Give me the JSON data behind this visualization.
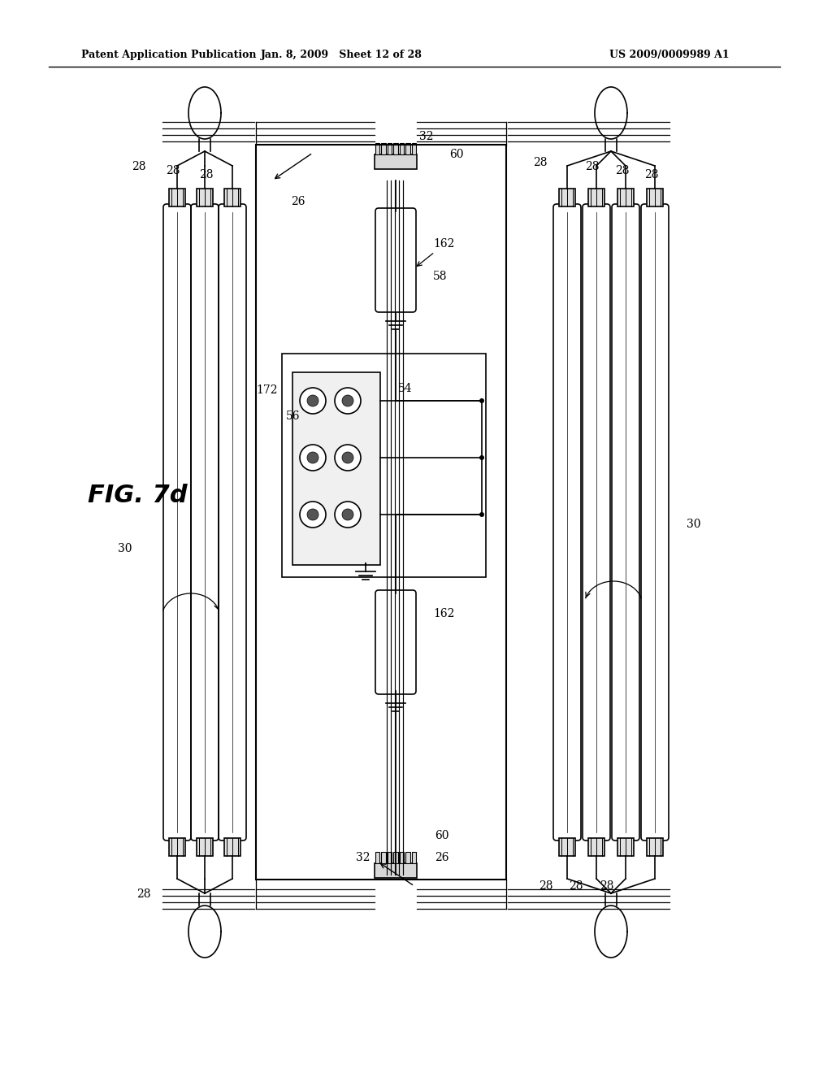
{
  "title_left": "Patent Application Publication",
  "title_mid": "Jan. 8, 2009   Sheet 12 of 28",
  "title_right": "US 2009/0009989 A1",
  "fig_label": "FIG. 7d",
  "background": "#ffffff",
  "line_color": "#000000",
  "fig_width": 10.24,
  "fig_height": 13.2,
  "dpi": 100
}
